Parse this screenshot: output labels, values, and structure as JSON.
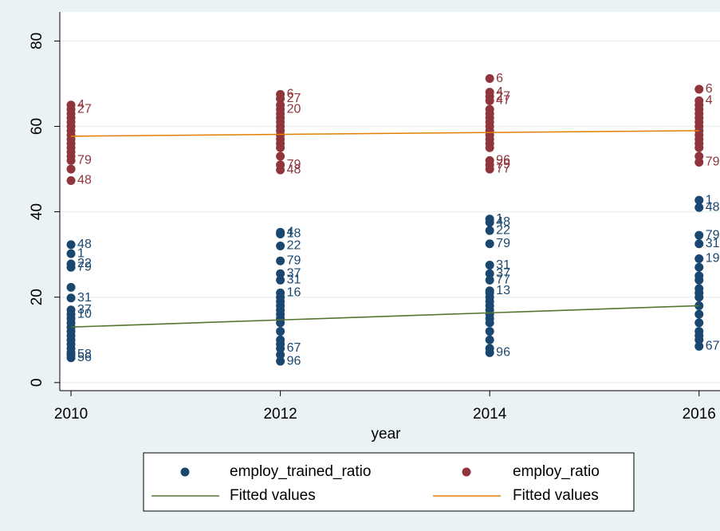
{
  "chart_data": {
    "type": "scatter",
    "xlabel": "year",
    "xlim": [
      2009.893,
      2016.2
    ],
    "ylim": [
      -1.9,
      86.8
    ],
    "xticks": [
      2010,
      2012,
      2014,
      2016
    ],
    "yticks": [
      0,
      20,
      40,
      60,
      80
    ],
    "grid": true,
    "series": [
      {
        "name": "employ_trained_ratio",
        "type": "scatter",
        "color": "#1a476f",
        "x": [
          2010,
          2010,
          2010,
          2010,
          2010,
          2010,
          2010,
          2010,
          2010,
          2010,
          2010,
          2010,
          2010,
          2010,
          2010,
          2010,
          2010,
          2010,
          2010,
          2012,
          2012,
          2012,
          2012,
          2012,
          2012,
          2012,
          2012,
          2012,
          2012,
          2012,
          2012,
          2012,
          2012,
          2012,
          2012,
          2012,
          2012,
          2012,
          2012,
          2014,
          2014,
          2014,
          2014,
          2014,
          2014,
          2014,
          2014,
          2014,
          2014,
          2014,
          2014,
          2014,
          2014,
          2014,
          2014,
          2014,
          2014,
          2014,
          2014,
          2016,
          2016,
          2016,
          2016,
          2016,
          2016,
          2016,
          2016,
          2016,
          2016,
          2016,
          2016,
          2016,
          2016,
          2016,
          2016,
          2016,
          2016
        ],
        "values": [
          32.3,
          30.2,
          27.8,
          27,
          22.3,
          19.8,
          17,
          16,
          15,
          14,
          13,
          12,
          11,
          10,
          9,
          8,
          7,
          6.5,
          5.8,
          35.2,
          34.8,
          32,
          28.5,
          25.5,
          24,
          21,
          20,
          19,
          18,
          17,
          16,
          15,
          14,
          12,
          10,
          9,
          8,
          6.5,
          5,
          38.3,
          37.5,
          35.6,
          32.5,
          27.5,
          25.5,
          24,
          21.5,
          21,
          20,
          19,
          18,
          17,
          16,
          15,
          14,
          12,
          10,
          8,
          7,
          42.7,
          41,
          34.5,
          32.5,
          29,
          27,
          25,
          24,
          22,
          21,
          20,
          18,
          16,
          14,
          12,
          11,
          10,
          8.5
        ],
        "point_labels": [
          "48",
          "1",
          "22",
          "79",
          null,
          "31",
          "37",
          "10",
          null,
          null,
          null,
          null,
          null,
          null,
          null,
          null,
          null,
          "58",
          "56",
          "4",
          "18",
          "22",
          "79",
          "37",
          "31",
          "16",
          null,
          null,
          null,
          null,
          null,
          null,
          null,
          null,
          null,
          null,
          "67",
          null,
          "96",
          "1",
          "48",
          "22",
          "79",
          "31",
          "37",
          "77",
          "13",
          null,
          null,
          null,
          null,
          null,
          null,
          null,
          null,
          null,
          null,
          null,
          "96",
          "1",
          "48",
          "79",
          "31",
          "19",
          null,
          null,
          null,
          null,
          null,
          null,
          null,
          null,
          null,
          null,
          null,
          null,
          "67"
        ]
      },
      {
        "name": "employ_ratio",
        "type": "scatter",
        "color": "#90353b",
        "x": [
          2010,
          2010,
          2010,
          2010,
          2010,
          2010,
          2010,
          2010,
          2010,
          2010,
          2010,
          2010,
          2010,
          2010,
          2010,
          2010,
          2012,
          2012,
          2012,
          2012,
          2012,
          2012,
          2012,
          2012,
          2012,
          2012,
          2012,
          2012,
          2012,
          2012,
          2012,
          2012,
          2014,
          2014,
          2014,
          2014,
          2014,
          2014,
          2014,
          2014,
          2014,
          2014,
          2014,
          2014,
          2014,
          2014,
          2014,
          2014,
          2014,
          2016,
          2016,
          2016,
          2016,
          2016,
          2016,
          2016,
          2016,
          2016,
          2016,
          2016,
          2016,
          2016,
          2016,
          2016
        ],
        "values": [
          65,
          64,
          63,
          62,
          61,
          60,
          59,
          58,
          57,
          56,
          55,
          54,
          53,
          52,
          50,
          47.3,
          67.5,
          66.5,
          65,
          64,
          63,
          62,
          61,
          60,
          59,
          58,
          57,
          56,
          55,
          53,
          51,
          49.8,
          71.2,
          68,
          67,
          66,
          64,
          63,
          62,
          61,
          60,
          59,
          58,
          57,
          56,
          55,
          52,
          51,
          50,
          68.7,
          66,
          65,
          64,
          63,
          62,
          61,
          60,
          59,
          58,
          57,
          56,
          55,
          53,
          51.6
        ],
        "point_labels": [
          "4",
          "27",
          null,
          null,
          null,
          null,
          null,
          null,
          null,
          null,
          null,
          null,
          null,
          "79",
          null,
          "48",
          "6",
          "27",
          null,
          "20",
          null,
          null,
          null,
          null,
          null,
          null,
          null,
          null,
          null,
          null,
          "79",
          "48",
          "6",
          "4",
          "27",
          "47",
          null,
          null,
          null,
          null,
          null,
          null,
          null,
          null,
          null,
          null,
          "96",
          "79",
          "77",
          "6",
          "4",
          null,
          null,
          null,
          null,
          null,
          null,
          null,
          null,
          null,
          null,
          null,
          null,
          "79"
        ]
      },
      {
        "name": "Fitted values",
        "type": "line",
        "color": "#55752f",
        "x": [
          2010,
          2016
        ],
        "values": [
          13,
          18
        ]
      },
      {
        "name": "Fitted values",
        "type": "line",
        "color": "#e37e00",
        "x": [
          2010,
          2016
        ],
        "values": [
          57.7,
          59
        ]
      }
    ]
  }
}
